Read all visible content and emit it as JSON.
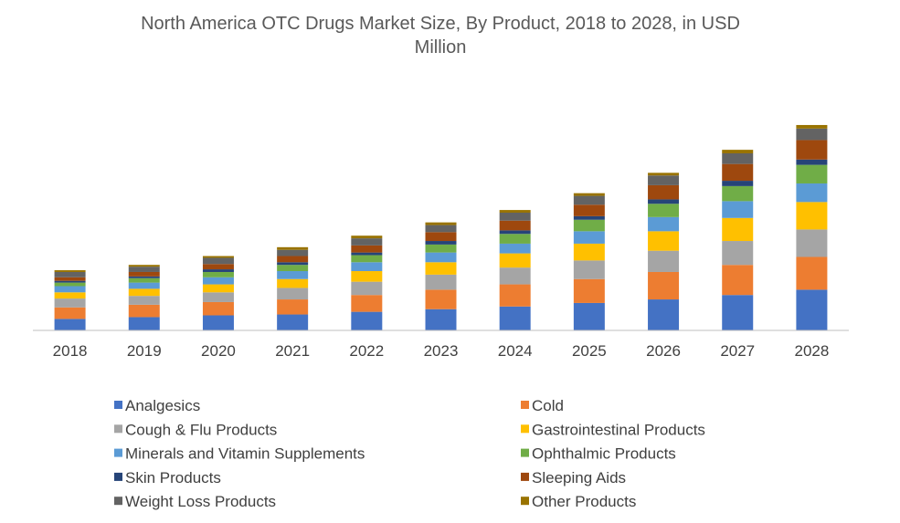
{
  "chart_data": {
    "type": "bar",
    "stacked": true,
    "title_lines": [
      "North America OTC Drugs Market Size, By Product, 2018 to 2028, in USD",
      "Million"
    ],
    "xlabel": "",
    "ylabel": "",
    "y_axis_shown": false,
    "grid": false,
    "legend_position": "bottom",
    "categories": [
      "2018",
      "2019",
      "2020",
      "2021",
      "2022",
      "2023",
      "2024",
      "2025",
      "2026",
      "2027",
      "2028"
    ],
    "series": [
      {
        "name": "Analgesics",
        "color": "#4472C4",
        "values": [
          13,
          15,
          17,
          18,
          21,
          24,
          27,
          31,
          35,
          40,
          46
        ]
      },
      {
        "name": "Cold",
        "color": "#ED7D31",
        "values": [
          13,
          14,
          15,
          17,
          19,
          22,
          25,
          27,
          31,
          34,
          37
        ]
      },
      {
        "name": "Cough & Flu Products",
        "color": "#A5A5A5",
        "values": [
          10,
          10,
          11,
          13,
          15,
          17,
          19,
          21,
          24,
          27,
          31
        ]
      },
      {
        "name": "Gastrointestinal Products",
        "color": "#FFC000",
        "values": [
          7,
          8,
          9,
          10,
          12,
          14,
          16,
          19,
          22,
          26,
          31
        ]
      },
      {
        "name": "Minerals and Vitamin Supplements",
        "color": "#5B9BD5",
        "values": [
          7,
          7,
          8,
          9,
          10,
          11,
          11,
          14,
          16,
          19,
          21
        ]
      },
      {
        "name": "Ophthalmic Products",
        "color": "#70AD47",
        "values": [
          4,
          5,
          6,
          7,
          8,
          9,
          11,
          13,
          15,
          17,
          21
        ]
      },
      {
        "name": "Skin Products",
        "color": "#264478",
        "values": [
          2,
          2,
          3,
          3,
          3,
          4,
          4,
          4,
          5,
          6,
          6
        ]
      },
      {
        "name": "Sleeping Aids",
        "color": "#9E480E",
        "values": [
          4,
          5,
          6,
          7,
          8,
          10,
          11,
          13,
          16,
          19,
          22
        ]
      },
      {
        "name": "Weight Loss Products",
        "color": "#636363",
        "values": [
          6,
          6,
          7,
          7,
          8,
          8,
          9,
          10,
          11,
          12,
          13
        ]
      },
      {
        "name": "Other Products",
        "color": "#997300",
        "values": [
          2,
          2,
          2,
          3,
          3,
          3,
          3,
          3,
          3,
          4,
          4
        ]
      }
    ]
  }
}
